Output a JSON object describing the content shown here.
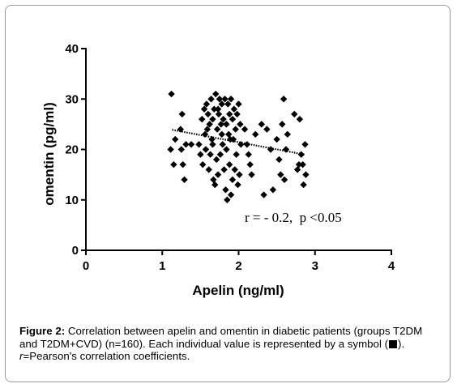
{
  "chart_data": {
    "type": "scatter",
    "title": "",
    "xlabel": "Apelin (ng/ml)",
    "ylabel": "omentin (pg/ml)",
    "xlim": [
      0,
      4
    ],
    "ylim": [
      0,
      40
    ],
    "xticks": [
      "0",
      "1",
      "2",
      "3",
      "4"
    ],
    "yticks": [
      "0",
      "10",
      "20",
      "30",
      "40"
    ],
    "grid": false,
    "legend": "none",
    "marker": "diamond",
    "marker_color": "#000000",
    "annotation": "r = - 0.2,  p <0.05",
    "regression_line": {
      "x": [
        1.13,
        2.86
      ],
      "y": [
        23.9,
        19.0
      ],
      "style": "dotted"
    },
    "points": [
      {
        "x": 1.12,
        "y": 31
      },
      {
        "x": 1.15,
        "y": 17
      },
      {
        "x": 1.11,
        "y": 20
      },
      {
        "x": 1.17,
        "y": 22
      },
      {
        "x": 1.26,
        "y": 27
      },
      {
        "x": 1.24,
        "y": 24
      },
      {
        "x": 1.31,
        "y": 21
      },
      {
        "x": 1.38,
        "y": 21
      },
      {
        "x": 1.27,
        "y": 17
      },
      {
        "x": 1.29,
        "y": 14
      },
      {
        "x": 1.25,
        "y": 20
      },
      {
        "x": 1.52,
        "y": 26
      },
      {
        "x": 1.55,
        "y": 28
      },
      {
        "x": 1.56,
        "y": 23
      },
      {
        "x": 1.58,
        "y": 29
      },
      {
        "x": 1.6,
        "y": 27
      },
      {
        "x": 1.62,
        "y": 25
      },
      {
        "x": 1.64,
        "y": 30
      },
      {
        "x": 1.65,
        "y": 22
      },
      {
        "x": 1.66,
        "y": 26
      },
      {
        "x": 1.68,
        "y": 28
      },
      {
        "x": 1.7,
        "y": 31
      },
      {
        "x": 1.72,
        "y": 24
      },
      {
        "x": 1.74,
        "y": 27
      },
      {
        "x": 1.75,
        "y": 30
      },
      {
        "x": 1.78,
        "y": 29
      },
      {
        "x": 1.8,
        "y": 26
      },
      {
        "x": 1.82,
        "y": 30
      },
      {
        "x": 1.84,
        "y": 25
      },
      {
        "x": 1.86,
        "y": 29
      },
      {
        "x": 1.88,
        "y": 27
      },
      {
        "x": 1.9,
        "y": 30
      },
      {
        "x": 1.92,
        "y": 26
      },
      {
        "x": 1.94,
        "y": 28
      },
      {
        "x": 1.96,
        "y": 24
      },
      {
        "x": 1.98,
        "y": 27
      },
      {
        "x": 2.0,
        "y": 29
      },
      {
        "x": 2.02,
        "y": 25
      },
      {
        "x": 1.73,
        "y": 28
      },
      {
        "x": 1.77,
        "y": 25
      },
      {
        "x": 1.87,
        "y": 23
      },
      {
        "x": 1.93,
        "y": 22
      },
      {
        "x": 1.48,
        "y": 21
      },
      {
        "x": 1.5,
        "y": 19
      },
      {
        "x": 1.53,
        "y": 17
      },
      {
        "x": 1.57,
        "y": 20
      },
      {
        "x": 1.61,
        "y": 16
      },
      {
        "x": 1.63,
        "y": 19
      },
      {
        "x": 1.67,
        "y": 14
      },
      {
        "x": 1.69,
        "y": 13
      },
      {
        "x": 1.71,
        "y": 18
      },
      {
        "x": 1.73,
        "y": 15
      },
      {
        "x": 1.76,
        "y": 19
      },
      {
        "x": 1.79,
        "y": 21
      },
      {
        "x": 1.81,
        "y": 16
      },
      {
        "x": 1.83,
        "y": 12
      },
      {
        "x": 1.85,
        "y": 10
      },
      {
        "x": 1.88,
        "y": 17
      },
      {
        "x": 1.9,
        "y": 11
      },
      {
        "x": 1.92,
        "y": 14
      },
      {
        "x": 1.95,
        "y": 16
      },
      {
        "x": 1.97,
        "y": 19
      },
      {
        "x": 1.99,
        "y": 13
      },
      {
        "x": 2.01,
        "y": 15
      },
      {
        "x": 2.03,
        "y": 21
      },
      {
        "x": 1.89,
        "y": 22
      },
      {
        "x": 1.84,
        "y": 20
      },
      {
        "x": 1.78,
        "y": 23
      },
      {
        "x": 1.66,
        "y": 21
      },
      {
        "x": 1.59,
        "y": 24
      },
      {
        "x": 2.08,
        "y": 24
      },
      {
        "x": 2.11,
        "y": 21
      },
      {
        "x": 2.13,
        "y": 19
      },
      {
        "x": 2.15,
        "y": 17
      },
      {
        "x": 2.17,
        "y": 15
      },
      {
        "x": 2.22,
        "y": 23
      },
      {
        "x": 2.3,
        "y": 25
      },
      {
        "x": 2.33,
        "y": 11
      },
      {
        "x": 2.37,
        "y": 24
      },
      {
        "x": 2.42,
        "y": 20
      },
      {
        "x": 2.45,
        "y": 12
      },
      {
        "x": 2.5,
        "y": 22
      },
      {
        "x": 2.53,
        "y": 18
      },
      {
        "x": 2.55,
        "y": 15
      },
      {
        "x": 2.57,
        "y": 25
      },
      {
        "x": 2.59,
        "y": 30
      },
      {
        "x": 2.62,
        "y": 20
      },
      {
        "x": 2.64,
        "y": 23
      },
      {
        "x": 2.6,
        "y": 14
      },
      {
        "x": 2.73,
        "y": 27
      },
      {
        "x": 2.77,
        "y": 16
      },
      {
        "x": 2.8,
        "y": 26
      },
      {
        "x": 2.82,
        "y": 19
      },
      {
        "x": 2.84,
        "y": 17
      },
      {
        "x": 2.85,
        "y": 13
      },
      {
        "x": 2.87,
        "y": 21
      },
      {
        "x": 2.88,
        "y": 15
      },
      {
        "x": 2.79,
        "y": 17
      }
    ]
  },
  "caption": {
    "label": "Figure 2:",
    "text_part1": " Correlation between apelin and omentin in diabetic patients (groups T2DM and T2DM+CVD) (n=160). Each individual value is represented by a symbol (",
    "text_part2": "). ",
    "r_symbol": "r",
    "text_part3": "=Pearson's correlation coefficients."
  }
}
